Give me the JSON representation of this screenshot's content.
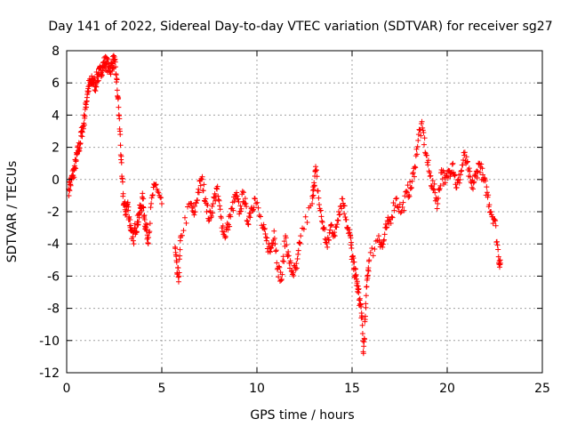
{
  "chart_data": {
    "type": "scatter",
    "title": "Day 141 of 2022, Sidereal Day-to-day VTEC variation (SDTVAR) for receiver sg27",
    "xlabel": "GPS time / hours",
    "ylabel": "SDTVAR / TECUs",
    "xlim": [
      0,
      25
    ],
    "ylim": [
      -12,
      8
    ],
    "xticks": [
      0,
      5,
      10,
      15,
      20,
      25
    ],
    "yticks": [
      -12,
      -10,
      -8,
      -6,
      -4,
      -2,
      0,
      2,
      4,
      6,
      8
    ],
    "xtick_labels": [
      "0",
      "5",
      "10",
      "15",
      "20",
      "25"
    ],
    "ytick_labels": [
      "-12",
      "-10",
      "-8",
      "-6",
      "-4",
      "-2",
      "0",
      "2",
      "4",
      "6",
      "8"
    ],
    "grid": true,
    "marker": "+",
    "color": "#ff0000",
    "series": [
      {
        "name": "SDTVAR",
        "x": [
          0.1,
          0.2,
          0.3,
          0.4,
          0.5,
          0.6,
          0.7,
          0.8,
          0.9,
          1.0,
          1.1,
          1.2,
          1.3,
          1.4,
          1.5,
          1.6,
          1.7,
          1.8,
          1.9,
          2.0,
          2.1,
          2.2,
          2.3,
          2.4,
          2.5,
          2.6,
          2.7,
          2.8,
          2.9,
          3.0,
          3.1,
          3.2,
          3.3,
          3.4,
          3.5,
          3.6,
          3.7,
          3.8,
          3.9,
          4.0,
          4.1,
          4.2,
          4.3,
          4.5,
          4.7,
          5.0,
          5.7,
          5.8,
          5.9,
          6.0,
          6.5,
          6.7,
          6.9,
          7.1,
          7.3,
          7.5,
          7.7,
          7.9,
          8.1,
          8.3,
          8.5,
          8.7,
          8.9,
          9.1,
          9.3,
          9.5,
          9.7,
          9.9,
          10.3,
          10.5,
          10.7,
          10.9,
          11.1,
          11.3,
          11.5,
          11.7,
          11.9,
          12.1,
          12.3,
          12.9,
          13.0,
          13.1,
          13.3,
          13.5,
          13.7,
          13.9,
          14.1,
          14.3,
          14.5,
          14.7,
          14.9,
          15.0,
          15.1,
          15.2,
          15.3,
          15.4,
          15.5,
          15.6,
          15.7,
          15.8,
          15.9,
          16.4,
          16.6,
          16.8,
          17.0,
          17.3,
          17.6,
          17.9,
          18.1,
          18.3,
          18.5,
          18.7,
          18.9,
          19.1,
          19.3,
          19.5,
          19.7,
          19.9,
          20.1,
          20.3,
          20.5,
          20.7,
          20.9,
          21.1,
          21.3,
          21.5,
          21.7,
          21.9,
          22.1,
          22.3,
          22.5,
          22.7,
          22.8
        ],
        "y": [
          -0.6,
          -0.3,
          0.2,
          0.6,
          1.2,
          1.8,
          2.2,
          3.0,
          3.5,
          4.5,
          5.5,
          5.9,
          6.0,
          6.2,
          5.8,
          6.4,
          6.5,
          6.8,
          7.0,
          7.3,
          7.2,
          7.0,
          6.9,
          7.2,
          7.4,
          6.5,
          5.0,
          3.0,
          0.2,
          -1.5,
          -2.0,
          -1.5,
          -2.5,
          -3.2,
          -3.8,
          -3.0,
          -2.8,
          -2.2,
          -1.8,
          -1.2,
          -2.5,
          -3.2,
          -3.6,
          -1.0,
          -0.3,
          -1.5,
          -4.2,
          -5.8,
          -6.0,
          -3.5,
          -1.5,
          -2.2,
          -0.8,
          0.0,
          -1.2,
          -2.5,
          -1.5,
          -0.6,
          -2.3,
          -3.5,
          -2.8,
          -1.8,
          -1.0,
          -2.0,
          -0.8,
          -2.6,
          -1.8,
          -1.2,
          -3.0,
          -3.8,
          -4.5,
          -3.2,
          -5.5,
          -6.2,
          -3.5,
          -5.2,
          -5.8,
          -5.5,
          -3.5,
          -1.5,
          -0.2,
          0.6,
          -1.8,
          -3.0,
          -4.2,
          -2.8,
          -3.5,
          -2.0,
          -1.2,
          -2.5,
          -3.5,
          -4.8,
          -5.5,
          -6.0,
          -6.8,
          -7.5,
          -8.3,
          -10.8,
          -8.5,
          -6.0,
          -5.0,
          -3.5,
          -4.2,
          -3.0,
          -2.5,
          -1.2,
          -2.0,
          -0.8,
          -0.5,
          0.8,
          2.8,
          3.2,
          1.5,
          0.2,
          -0.6,
          -1.5,
          0.6,
          -0.2,
          0.5,
          1.0,
          -0.5,
          0.3,
          1.5,
          0.6,
          -0.5,
          0.2,
          1.0,
          0.0,
          -0.8,
          -2.0,
          -2.5,
          -4.8,
          -5.2
        ]
      }
    ]
  }
}
